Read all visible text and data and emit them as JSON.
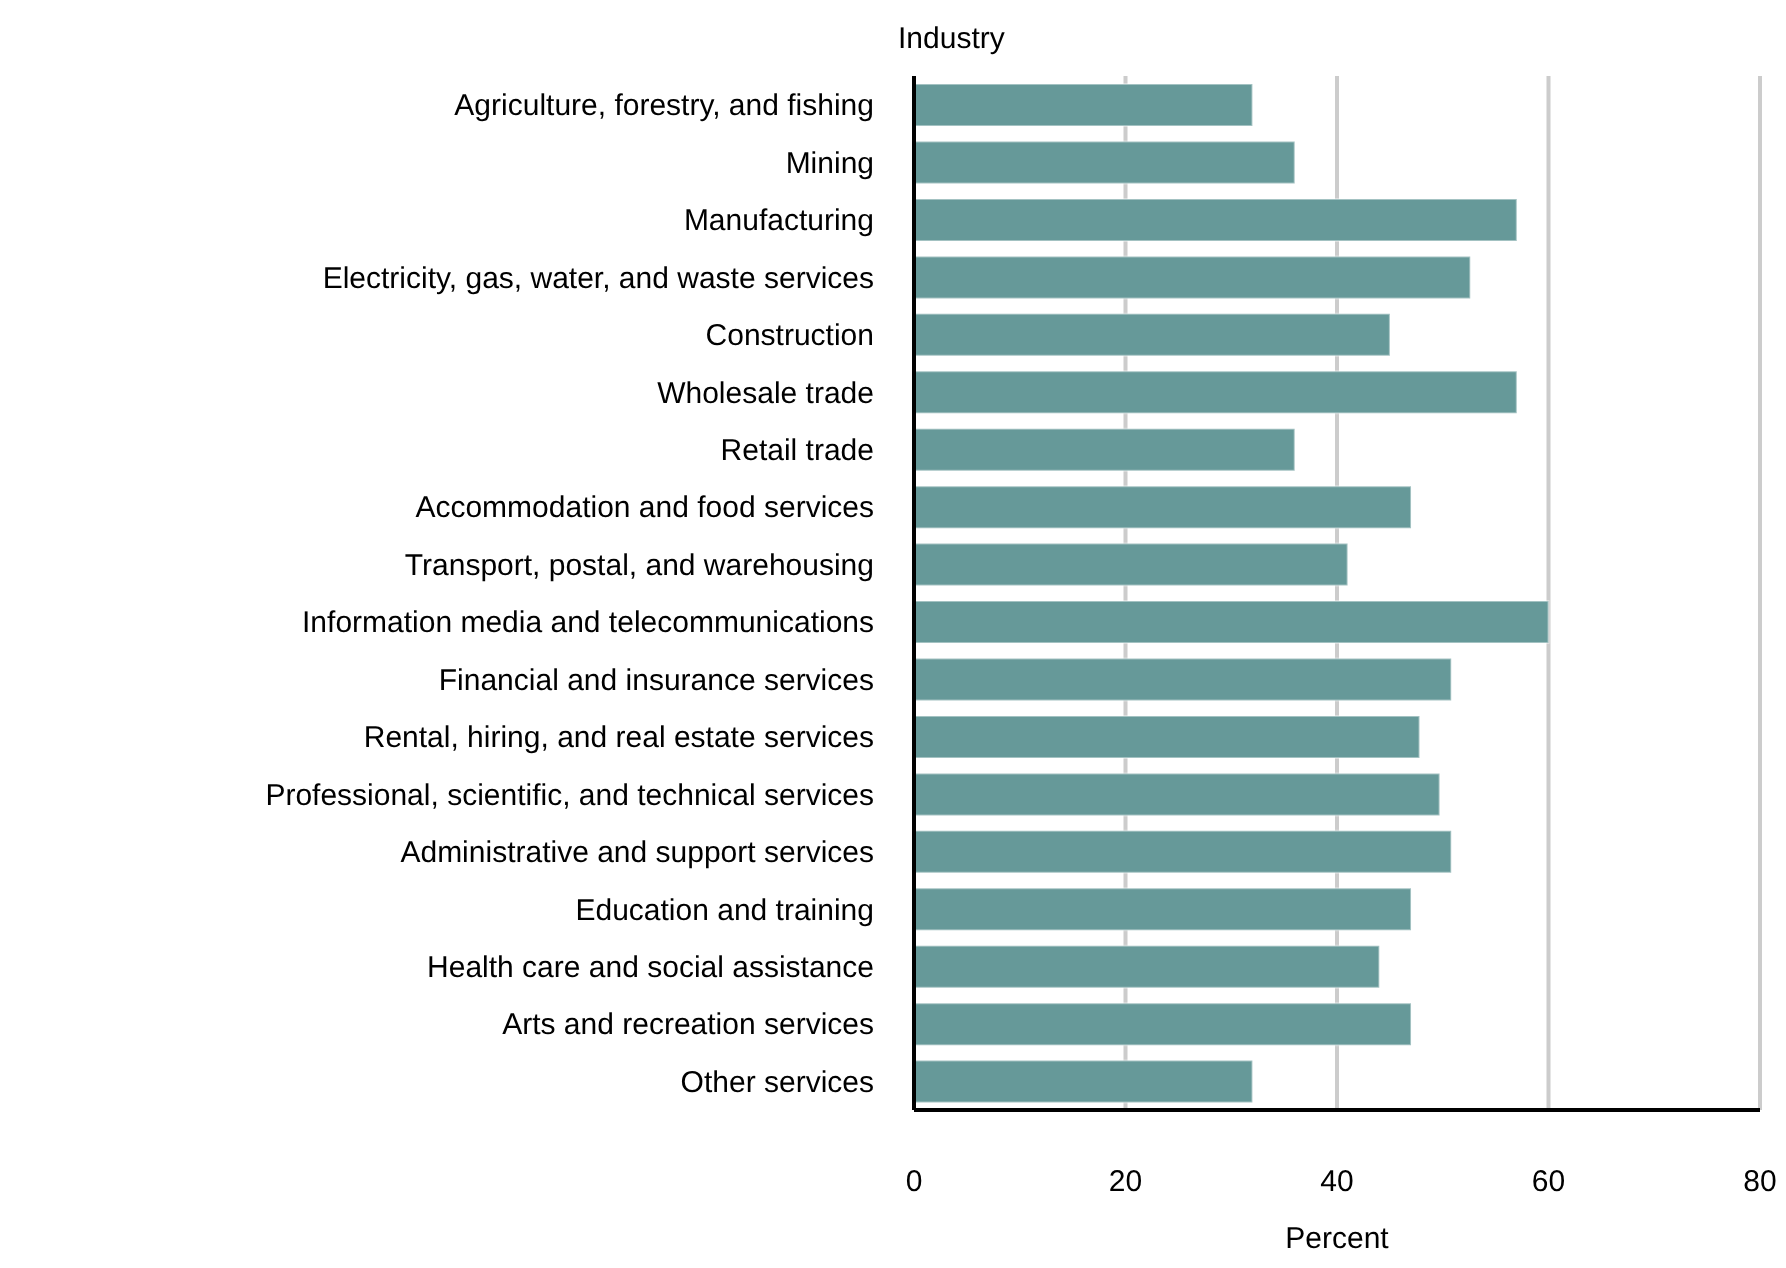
{
  "chart_data": {
    "type": "bar",
    "orientation": "horizontal",
    "ylabel": "Industry",
    "xlabel": "Percent",
    "categories": [
      "Agriculture, forestry, and fishing",
      "Mining",
      "Manufacturing",
      "Electricity, gas, water, and waste services",
      "Construction",
      "Wholesale trade",
      "Retail trade",
      "Accommodation and food services",
      "Transport, postal, and warehousing",
      "Information media and telecommunications",
      "Financial and insurance services",
      "Rental, hiring, and real estate services",
      "Professional, scientific, and technical services",
      "Administrative and support services",
      "Education and training",
      "Health care and social assistance",
      "Arts and recreation services",
      "Other services"
    ],
    "values": [
      32,
      36,
      57,
      52.6,
      45,
      57,
      36,
      47,
      41,
      60,
      50.8,
      47.8,
      49.7,
      50.8,
      47,
      44,
      47,
      32
    ],
    "color": "#669999",
    "xlim": [
      0,
      80
    ],
    "xticks": [
      0,
      20,
      40,
      60,
      80
    ],
    "grid": "x"
  }
}
